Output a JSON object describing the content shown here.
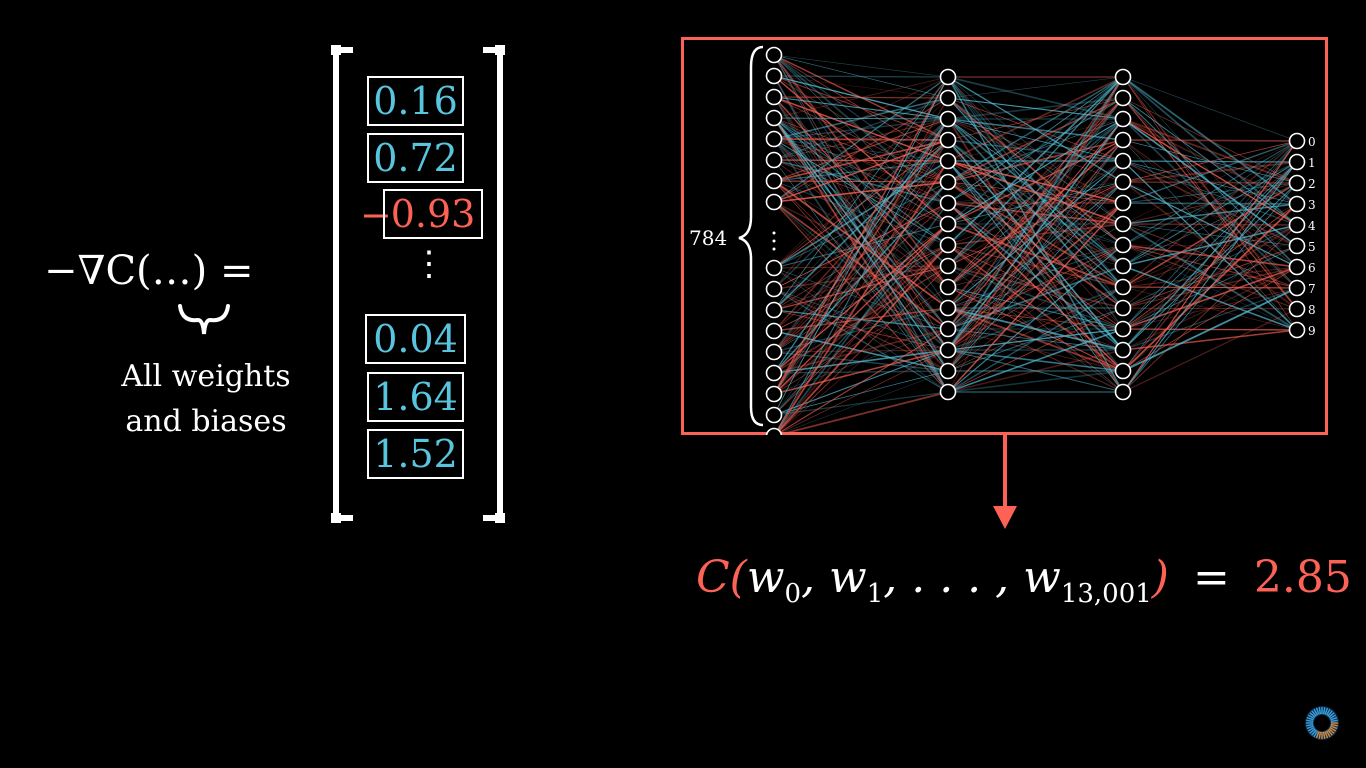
{
  "left_expression": {
    "formula": "−∇C(…) =",
    "brace_caption_line1": "All weights",
    "brace_caption_line2": "and biases"
  },
  "gradient_vector": {
    "entries": [
      {
        "sign": "",
        "value": "0.16",
        "color": "blue"
      },
      {
        "sign": "",
        "value": "0.72",
        "color": "blue"
      },
      {
        "sign": "−",
        "value": "0.93",
        "color": "red"
      },
      {
        "sign": "",
        "value": "0.04",
        "color": "blue"
      },
      {
        "sign": "",
        "value": "1.64",
        "color": "blue"
      },
      {
        "sign": "",
        "value": "1.52",
        "color": "blue"
      }
    ],
    "ellipsis": "⋮"
  },
  "network": {
    "input_count_label": "784",
    "output_labels": [
      "0",
      "1",
      "2",
      "3",
      "4",
      "5",
      "6",
      "7",
      "8",
      "9"
    ],
    "layer_sizes_shown": [
      17,
      16,
      16,
      10
    ]
  },
  "cost_function": {
    "func": "C",
    "args_text": "w",
    "sub0": "0",
    "sub1": "1",
    "sub_last": "13,001",
    "equals": "=",
    "value": "2.85"
  },
  "colors": {
    "background": "#000000",
    "red": "#fc6255",
    "blue": "#58c4dd",
    "white": "#ffffff"
  },
  "icons": [
    "brand-logo-icon"
  ]
}
